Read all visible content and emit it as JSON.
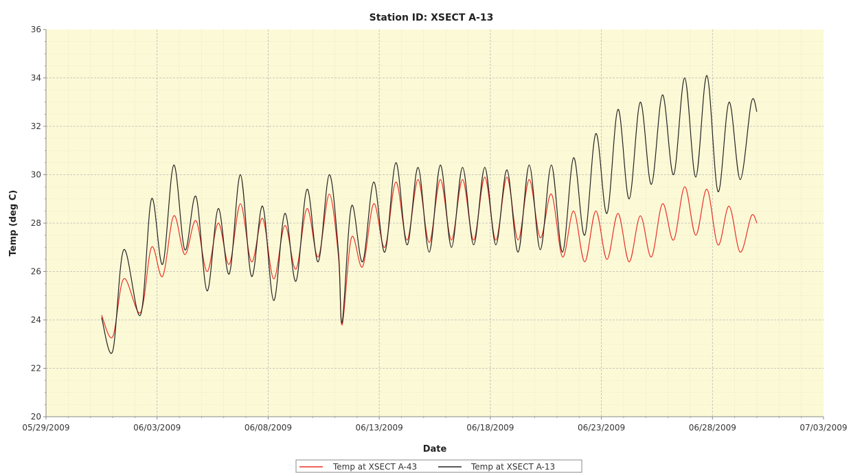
{
  "colors": {
    "plot_background": "#fcf9d6",
    "grid": "#b8b8b8",
    "axis": "#888888",
    "series_a43": "#e8302a",
    "series_a13": "#222222"
  },
  "chart_data": {
    "type": "line",
    "title": "Station ID: XSECT A-13",
    "xlabel": "Date",
    "ylabel": "Temp  (deg C)",
    "xlim": [
      "05/29/2009",
      "07/03/2009"
    ],
    "ylim": [
      20,
      36
    ],
    "x_ticks": [
      "05/29/2009",
      "06/03/2009",
      "06/08/2009",
      "06/13/2009",
      "06/18/2009",
      "06/23/2009",
      "06/28/2009",
      "07/03/2009"
    ],
    "y_ticks": [
      20,
      22,
      24,
      26,
      28,
      30,
      32,
      34,
      36
    ],
    "grid": true,
    "legend_placement": "bottom-center",
    "series": [
      {
        "name": "Temp at XSECT A-43",
        "color": "#e8302a",
        "points": [
          [
            "05/31/2009 12:00",
            24.2
          ],
          [
            "06/01/2009 00:00",
            23.3
          ],
          [
            "06/01/2009 12:00",
            25.7
          ],
          [
            "06/02/2009 06:00",
            24.3
          ],
          [
            "06/02/2009 18:00",
            27.0
          ],
          [
            "06/03/2009 06:00",
            25.8
          ],
          [
            "06/03/2009 18:00",
            28.3
          ],
          [
            "06/04/2009 06:00",
            26.7
          ],
          [
            "06/04/2009 18:00",
            28.1
          ],
          [
            "06/05/2009 06:00",
            26.0
          ],
          [
            "06/05/2009 18:00",
            28.0
          ],
          [
            "06/06/2009 06:00",
            26.3
          ],
          [
            "06/06/2009 18:00",
            28.8
          ],
          [
            "06/07/2009 06:00",
            26.4
          ],
          [
            "06/07/2009 18:00",
            28.2
          ],
          [
            "06/08/2009 06:00",
            25.7
          ],
          [
            "06/08/2009 18:00",
            27.9
          ],
          [
            "06/09/2009 06:00",
            26.1
          ],
          [
            "06/09/2009 18:00",
            28.6
          ],
          [
            "06/10/2009 06:00",
            26.6
          ],
          [
            "06/10/2009 18:00",
            29.2
          ],
          [
            "06/11/2009 04:00",
            26.6
          ],
          [
            "06/11/2009 08:00",
            23.8
          ],
          [
            "06/11/2009 18:00",
            27.4
          ],
          [
            "06/12/2009 06:00",
            26.2
          ],
          [
            "06/12/2009 18:00",
            28.8
          ],
          [
            "06/13/2009 06:00",
            27.0
          ],
          [
            "06/13/2009 18:00",
            29.7
          ],
          [
            "06/14/2009 06:00",
            27.3
          ],
          [
            "06/14/2009 18:00",
            29.8
          ],
          [
            "06/15/2009 06:00",
            27.2
          ],
          [
            "06/15/2009 18:00",
            29.8
          ],
          [
            "06/16/2009 06:00",
            27.3
          ],
          [
            "06/16/2009 18:00",
            29.8
          ],
          [
            "06/17/2009 06:00",
            27.3
          ],
          [
            "06/17/2009 18:00",
            29.9
          ],
          [
            "06/18/2009 06:00",
            27.3
          ],
          [
            "06/18/2009 18:00",
            29.9
          ],
          [
            "06/19/2009 06:00",
            27.3
          ],
          [
            "06/19/2009 18:00",
            29.8
          ],
          [
            "06/20/2009 06:00",
            27.4
          ],
          [
            "06/20/2009 18:00",
            29.2
          ],
          [
            "06/21/2009 06:00",
            26.6
          ],
          [
            "06/21/2009 18:00",
            28.5
          ],
          [
            "06/22/2009 06:00",
            26.4
          ],
          [
            "06/22/2009 18:00",
            28.5
          ],
          [
            "06/23/2009 06:00",
            26.5
          ],
          [
            "06/23/2009 18:00",
            28.4
          ],
          [
            "06/24/2009 06:00",
            26.4
          ],
          [
            "06/24/2009 18:00",
            28.3
          ],
          [
            "06/25/2009 06:00",
            26.6
          ],
          [
            "06/25/2009 18:00",
            28.8
          ],
          [
            "06/26/2009 06:00",
            27.3
          ],
          [
            "06/26/2009 18:00",
            29.5
          ],
          [
            "06/27/2009 06:00",
            27.5
          ],
          [
            "06/27/2009 18:00",
            29.4
          ],
          [
            "06/28/2009 06:00",
            27.1
          ],
          [
            "06/28/2009 18:00",
            28.7
          ],
          [
            "06/29/2009 06:00",
            26.8
          ],
          [
            "06/29/2009 18:00",
            28.3
          ],
          [
            "06/30/2009 00:00",
            28.0
          ]
        ]
      },
      {
        "name": "Temp at XSECT A-13",
        "color": "#222222",
        "points": [
          [
            "05/31/2009 12:00",
            24.1
          ],
          [
            "06/01/2009 00:00",
            22.7
          ],
          [
            "06/01/2009 12:00",
            26.9
          ],
          [
            "06/02/2009 06:00",
            24.2
          ],
          [
            "06/02/2009 18:00",
            29.0
          ],
          [
            "06/03/2009 06:00",
            26.3
          ],
          [
            "06/03/2009 18:00",
            30.4
          ],
          [
            "06/04/2009 06:00",
            26.9
          ],
          [
            "06/04/2009 18:00",
            29.1
          ],
          [
            "06/05/2009 06:00",
            25.2
          ],
          [
            "06/05/2009 18:00",
            28.6
          ],
          [
            "06/06/2009 06:00",
            25.9
          ],
          [
            "06/06/2009 18:00",
            30.0
          ],
          [
            "06/07/2009 06:00",
            25.8
          ],
          [
            "06/07/2009 18:00",
            28.7
          ],
          [
            "06/08/2009 06:00",
            24.8
          ],
          [
            "06/08/2009 18:00",
            28.4
          ],
          [
            "06/09/2009 06:00",
            25.6
          ],
          [
            "06/09/2009 18:00",
            29.4
          ],
          [
            "06/10/2009 06:00",
            26.4
          ],
          [
            "06/10/2009 18:00",
            30.0
          ],
          [
            "06/11/2009 04:00",
            26.8
          ],
          [
            "06/11/2009 08:00",
            23.9
          ],
          [
            "06/11/2009 18:00",
            28.7
          ],
          [
            "06/12/2009 06:00",
            26.4
          ],
          [
            "06/12/2009 18:00",
            29.7
          ],
          [
            "06/13/2009 06:00",
            26.8
          ],
          [
            "06/13/2009 18:00",
            30.5
          ],
          [
            "06/14/2009 06:00",
            27.1
          ],
          [
            "06/14/2009 18:00",
            30.3
          ],
          [
            "06/15/2009 06:00",
            26.8
          ],
          [
            "06/15/2009 18:00",
            30.4
          ],
          [
            "06/16/2009 06:00",
            27.0
          ],
          [
            "06/16/2009 18:00",
            30.3
          ],
          [
            "06/17/2009 06:00",
            27.1
          ],
          [
            "06/17/2009 18:00",
            30.3
          ],
          [
            "06/18/2009 06:00",
            27.1
          ],
          [
            "06/18/2009 18:00",
            30.2
          ],
          [
            "06/19/2009 06:00",
            26.8
          ],
          [
            "06/19/2009 18:00",
            30.4
          ],
          [
            "06/20/2009 06:00",
            26.9
          ],
          [
            "06/20/2009 18:00",
            30.4
          ],
          [
            "06/21/2009 06:00",
            26.8
          ],
          [
            "06/21/2009 18:00",
            30.7
          ],
          [
            "06/22/2009 06:00",
            27.5
          ],
          [
            "06/22/2009 18:00",
            31.7
          ],
          [
            "06/23/2009 06:00",
            28.4
          ],
          [
            "06/23/2009 18:00",
            32.7
          ],
          [
            "06/24/2009 06:00",
            29.0
          ],
          [
            "06/24/2009 18:00",
            33.0
          ],
          [
            "06/25/2009 06:00",
            29.6
          ],
          [
            "06/25/2009 18:00",
            33.3
          ],
          [
            "06/26/2009 06:00",
            30.0
          ],
          [
            "06/26/2009 18:00",
            34.0
          ],
          [
            "06/27/2009 06:00",
            29.9
          ],
          [
            "06/27/2009 18:00",
            34.1
          ],
          [
            "06/28/2009 06:00",
            29.3
          ],
          [
            "06/28/2009 18:00",
            33.0
          ],
          [
            "06/29/2009 06:00",
            29.8
          ],
          [
            "06/29/2009 18:00",
            33.0
          ],
          [
            "06/30/2009 00:00",
            32.6
          ]
        ]
      }
    ]
  }
}
